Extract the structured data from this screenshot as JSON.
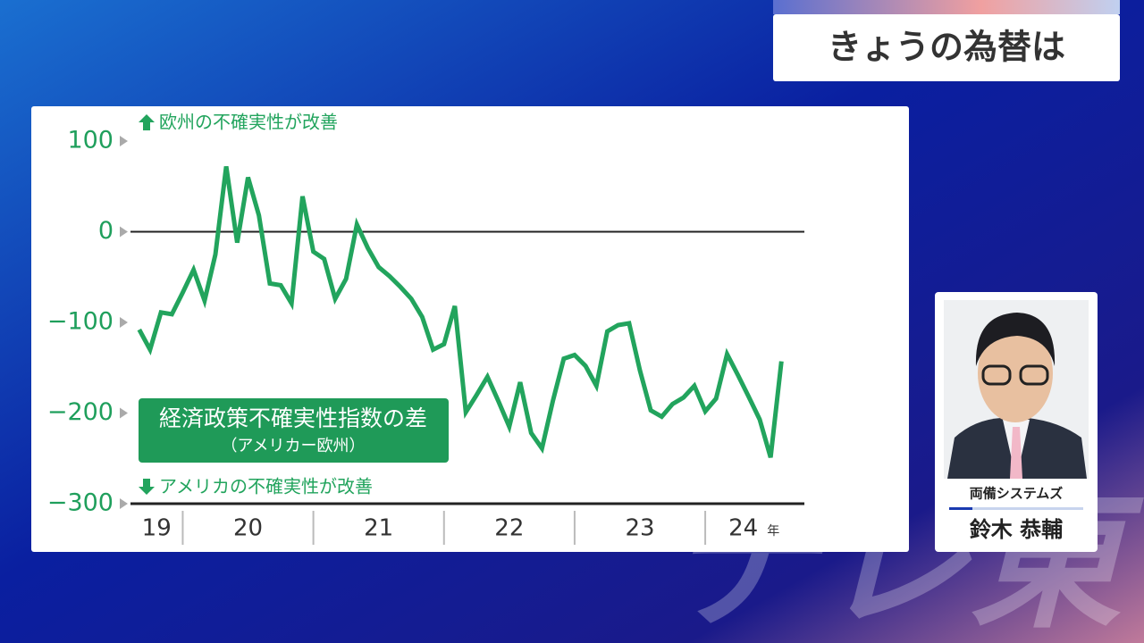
{
  "header": {
    "title": "きょうの為替は"
  },
  "speaker": {
    "company": "両備システムズ",
    "name": "鈴木 恭輔"
  },
  "watermark": "テレ東",
  "chart_data": {
    "type": "line",
    "x": [
      19.667,
      19.75,
      19.833,
      19.917,
      20,
      20.083,
      20.167,
      20.25,
      20.333,
      20.417,
      20.5,
      20.583,
      20.667,
      20.75,
      20.833,
      20.917,
      21,
      21.083,
      21.167,
      21.25,
      21.333,
      21.417,
      21.5,
      21.583,
      21.667,
      21.75,
      21.833,
      21.917,
      22,
      22.083,
      22.167,
      22.25,
      22.333,
      22.417,
      22.5,
      22.583,
      22.667,
      22.75,
      22.833,
      22.917,
      23,
      23.083,
      23.167,
      23.25,
      23.333,
      23.417,
      23.5,
      23.583,
      23.667,
      23.75,
      23.833,
      23.917,
      24,
      24.083,
      24.167,
      24.25,
      24.333,
      24.417,
      24.5,
      24.583
    ],
    "series": [
      {
        "name": "経済政策不確実性指数の差",
        "note": "（アメリカー欧州）",
        "color": "#22a45d",
        "values": [
          -108,
          -130,
          -89,
          -91,
          -67,
          -42,
          -76,
          -25,
          72,
          -12,
          60,
          18,
          -57,
          -59,
          -79,
          39,
          -22,
          -30,
          -74,
          -52,
          8,
          -18,
          -39,
          -49,
          -61,
          -74,
          -94,
          -130,
          -124,
          -82,
          -199,
          -180,
          -160,
          -187,
          -215,
          -166,
          -222,
          -239,
          -187,
          -140,
          -136,
          -148,
          -170,
          -110,
          -103,
          -101,
          -153,
          -197,
          -204,
          -190,
          -183,
          -170,
          -198,
          -184,
          -135,
          -158,
          -182,
          -207,
          -249,
          -143
        ]
      }
    ],
    "annotations": [
      "欧州の不確実性が改善",
      "アメリカの不確実性が改善"
    ],
    "xlim": [
      19.6,
      24.8
    ],
    "xticks": [
      20,
      21,
      22,
      23,
      24
    ],
    "year_labels": [
      "19",
      "20",
      "21",
      "22",
      "23",
      "24"
    ],
    "x_unit": "年",
    "ylim": [
      -300,
      100
    ],
    "yticks": [
      {
        "value": 100,
        "label": "100"
      },
      {
        "value": 0,
        "label": "0"
      },
      {
        "value": -100,
        "label": "−100"
      },
      {
        "value": -200,
        "label": "−200"
      },
      {
        "value": -300,
        "label": "−300"
      }
    ],
    "grid": false
  }
}
